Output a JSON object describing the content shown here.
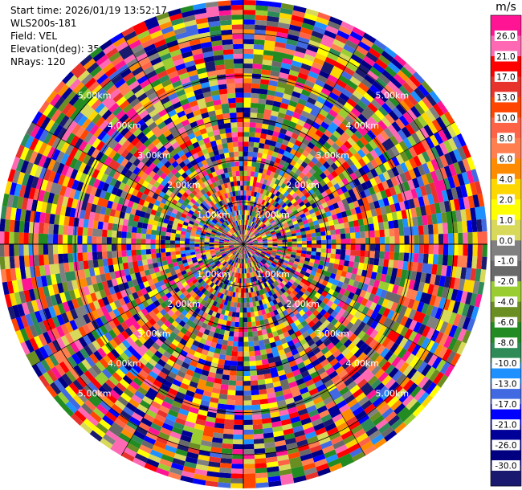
{
  "info": {
    "start_time": "Start time: 2026/01/19 13:52:17",
    "instrument": "WLS200s-181",
    "field": "Field: VEL",
    "elevation": "Elevation(deg): 35.00",
    "nrays": "NRays: 120"
  },
  "chart_data": {
    "type": "heatmap",
    "projection": "polar PPI",
    "field": "VEL",
    "units": "m/s",
    "nrays": 120,
    "elevation_deg": 35.0,
    "range_rings_km": [
      1.0,
      2.0,
      3.0,
      4.0,
      5.0
    ],
    "range_ring_labels": [
      "1.00km",
      "2.00km",
      "3.00km",
      "4.00km",
      "5.00km"
    ],
    "max_range_km": 5.8,
    "colorbar": {
      "label": "m/s",
      "vmin": -30.0,
      "vmax": 30.0,
      "tick_labels": [
        "26.0",
        "21.0",
        "17.0",
        "13.0",
        "10.0",
        "8.0",
        "6.0",
        "4.0",
        "2.0",
        "1.0",
        "0.0",
        "-1.0",
        "-2.0",
        "-4.0",
        "-6.0",
        "-8.0",
        "-10.0",
        "-13.0",
        "-17.0",
        "-21.0",
        "-26.0",
        "-30.0"
      ],
      "colors": [
        "#ff1493",
        "#ff69b4",
        "#ff0000",
        "#e8332c",
        "#ff4500",
        "#ff6347",
        "#ff7f50",
        "#ff8c00",
        "#ffd700",
        "#ffff00",
        "#d8d85a",
        "#808080",
        "#696969",
        "#9acd32",
        "#6b8e23",
        "#228b22",
        "#2e8b57",
        "#1e90ff",
        "#4169e1",
        "#0000ff",
        "#000099",
        "#000080",
        "#191970"
      ]
    }
  }
}
